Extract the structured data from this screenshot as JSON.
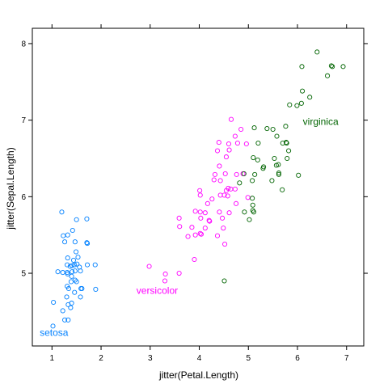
{
  "chart_data": {
    "type": "scatter",
    "xlabel": "jitter(Petal.Length)",
    "ylabel": "jitter(Sepal.Length)",
    "xlim": [
      0.6,
      7.35
    ],
    "ylim": [
      4.05,
      8.2
    ],
    "x_ticks": [
      1,
      2,
      3,
      4,
      5,
      6,
      7
    ],
    "y_ticks": [
      5,
      6,
      7,
      8
    ],
    "grid": false,
    "legend": "none",
    "series": [
      {
        "name": "setosa",
        "color": "#0080ff",
        "points": [
          [
            1.02,
            4.31
          ],
          [
            1.26,
            4.39
          ],
          [
            1.33,
            4.39
          ],
          [
            1.38,
            4.55
          ],
          [
            1.22,
            4.51
          ],
          [
            1.33,
            4.59
          ],
          [
            1.4,
            4.61
          ],
          [
            1.03,
            4.62
          ],
          [
            1.3,
            4.69
          ],
          [
            1.58,
            4.69
          ],
          [
            1.46,
            4.75
          ],
          [
            1.34,
            4.8
          ],
          [
            1.59,
            4.8
          ],
          [
            1.61,
            4.8
          ],
          [
            1.89,
            4.79
          ],
          [
            1.31,
            4.83
          ],
          [
            1.39,
            4.89
          ],
          [
            1.5,
            4.89
          ],
          [
            1.47,
            4.91
          ],
          [
            1.4,
            4.96
          ],
          [
            1.32,
            4.99
          ],
          [
            1.31,
            5.01
          ],
          [
            1.22,
            5.01
          ],
          [
            1.12,
            5.02
          ],
          [
            1.41,
            5.02
          ],
          [
            1.47,
            5.03
          ],
          [
            1.58,
            5.03
          ],
          [
            1.56,
            5.08
          ],
          [
            1.37,
            5.09
          ],
          [
            1.31,
            5.11
          ],
          [
            1.41,
            5.1
          ],
          [
            1.46,
            5.11
          ],
          [
            1.51,
            5.12
          ],
          [
            1.72,
            5.11
          ],
          [
            1.88,
            5.11
          ],
          [
            1.44,
            5.17
          ],
          [
            1.32,
            5.2
          ],
          [
            1.53,
            5.21
          ],
          [
            1.49,
            5.28
          ],
          [
            1.72,
            5.39
          ],
          [
            1.71,
            5.4
          ],
          [
            1.26,
            5.41
          ],
          [
            1.47,
            5.41
          ],
          [
            1.23,
            5.49
          ],
          [
            1.32,
            5.5
          ],
          [
            1.42,
            5.56
          ],
          [
            1.5,
            5.7
          ],
          [
            1.71,
            5.71
          ],
          [
            1.2,
            5.8
          ]
        ]
      },
      {
        "name": "versicolor",
        "color": "#ff00ff",
        "points": [
          [
            3.3,
            4.9
          ],
          [
            3.31,
            4.99
          ],
          [
            3.59,
            5.0
          ],
          [
            2.98,
            5.09
          ],
          [
            3.9,
            5.18
          ],
          [
            4.52,
            5.38
          ],
          [
            3.92,
            5.5
          ],
          [
            3.77,
            5.48
          ],
          [
            4.37,
            5.49
          ],
          [
            4.04,
            5.51
          ],
          [
            4.02,
            5.52
          ],
          [
            3.85,
            5.6
          ],
          [
            4.12,
            5.59
          ],
          [
            4.49,
            5.59
          ],
          [
            3.6,
            5.61
          ],
          [
            4.21,
            5.68
          ],
          [
            4.2,
            5.69
          ],
          [
            4.47,
            5.72
          ],
          [
            4.03,
            5.72
          ],
          [
            3.59,
            5.72
          ],
          [
            4.41,
            5.8
          ],
          [
            4.12,
            5.79
          ],
          [
            3.92,
            5.81
          ],
          [
            4.02,
            5.8
          ],
          [
            4.61,
            5.79
          ],
          [
            4.17,
            5.91
          ],
          [
            4.75,
            5.91
          ],
          [
            4.26,
            5.97
          ],
          [
            4.99,
            5.99
          ],
          [
            4.58,
            6.01
          ],
          [
            4.43,
            6.02
          ],
          [
            4.02,
            6.02
          ],
          [
            4.51,
            6.02
          ],
          [
            4.01,
            6.08
          ],
          [
            4.55,
            6.08
          ],
          [
            4.64,
            6.1
          ],
          [
            4.59,
            6.11
          ],
          [
            4.73,
            6.1
          ],
          [
            4.43,
            6.21
          ],
          [
            4.3,
            6.22
          ],
          [
            4.32,
            6.29
          ],
          [
            4.76,
            6.29
          ],
          [
            4.53,
            6.3
          ],
          [
            4.89,
            6.3
          ],
          [
            4.41,
            6.4
          ],
          [
            4.55,
            6.52
          ],
          [
            4.61,
            6.61
          ],
          [
            4.37,
            6.6
          ],
          [
            4.78,
            6.7
          ],
          [
            4.6,
            6.69
          ],
          [
            4.4,
            6.71
          ],
          [
            4.96,
            6.69
          ],
          [
            4.73,
            6.79
          ],
          [
            4.85,
            6.88
          ],
          [
            4.65,
            7.01
          ]
        ]
      },
      {
        "name": "virginica",
        "color": "#006400",
        "points": [
          [
            4.51,
            4.9
          ],
          [
            5.02,
            5.7
          ],
          [
            4.92,
            5.8
          ],
          [
            5.11,
            5.8
          ],
          [
            5.09,
            5.82
          ],
          [
            5.09,
            5.89
          ],
          [
            5.08,
            5.98
          ],
          [
            5.69,
            6.09
          ],
          [
            4.82,
            6.18
          ],
          [
            5.08,
            6.21
          ],
          [
            5.48,
            6.21
          ],
          [
            6.02,
            6.28
          ],
          [
            5.13,
            6.29
          ],
          [
            4.91,
            6.3
          ],
          [
            5.62,
            6.29
          ],
          [
            5.62,
            6.31
          ],
          [
            5.3,
            6.37
          ],
          [
            5.61,
            6.42
          ],
          [
            5.57,
            6.41
          ],
          [
            5.31,
            6.39
          ],
          [
            5.53,
            6.5
          ],
          [
            5.79,
            6.5
          ],
          [
            5.1,
            6.51
          ],
          [
            5.19,
            6.48
          ],
          [
            5.82,
            6.6
          ],
          [
            5.7,
            6.7
          ],
          [
            5.2,
            6.7
          ],
          [
            5.77,
            6.71
          ],
          [
            5.78,
            6.7
          ],
          [
            5.58,
            6.79
          ],
          [
            5.5,
            6.88
          ],
          [
            5.12,
            6.9
          ],
          [
            5.38,
            6.89
          ],
          [
            5.76,
            6.92
          ],
          [
            5.99,
            7.19
          ],
          [
            6.08,
            7.22
          ],
          [
            5.84,
            7.2
          ],
          [
            6.1,
            7.38
          ],
          [
            6.25,
            7.3
          ],
          [
            6.61,
            7.58
          ],
          [
            6.09,
            7.7
          ],
          [
            6.69,
            7.71
          ],
          [
            6.71,
            7.7
          ],
          [
            6.93,
            7.7
          ],
          [
            6.4,
            7.89
          ]
        ]
      }
    ],
    "series_labels": [
      {
        "text": "setosa",
        "x": 0.75,
        "y": 4.18
      },
      {
        "text": "versicolor",
        "x": 2.72,
        "y": 4.73
      },
      {
        "text": "virginica",
        "x": 6.11,
        "y": 6.94
      }
    ]
  }
}
